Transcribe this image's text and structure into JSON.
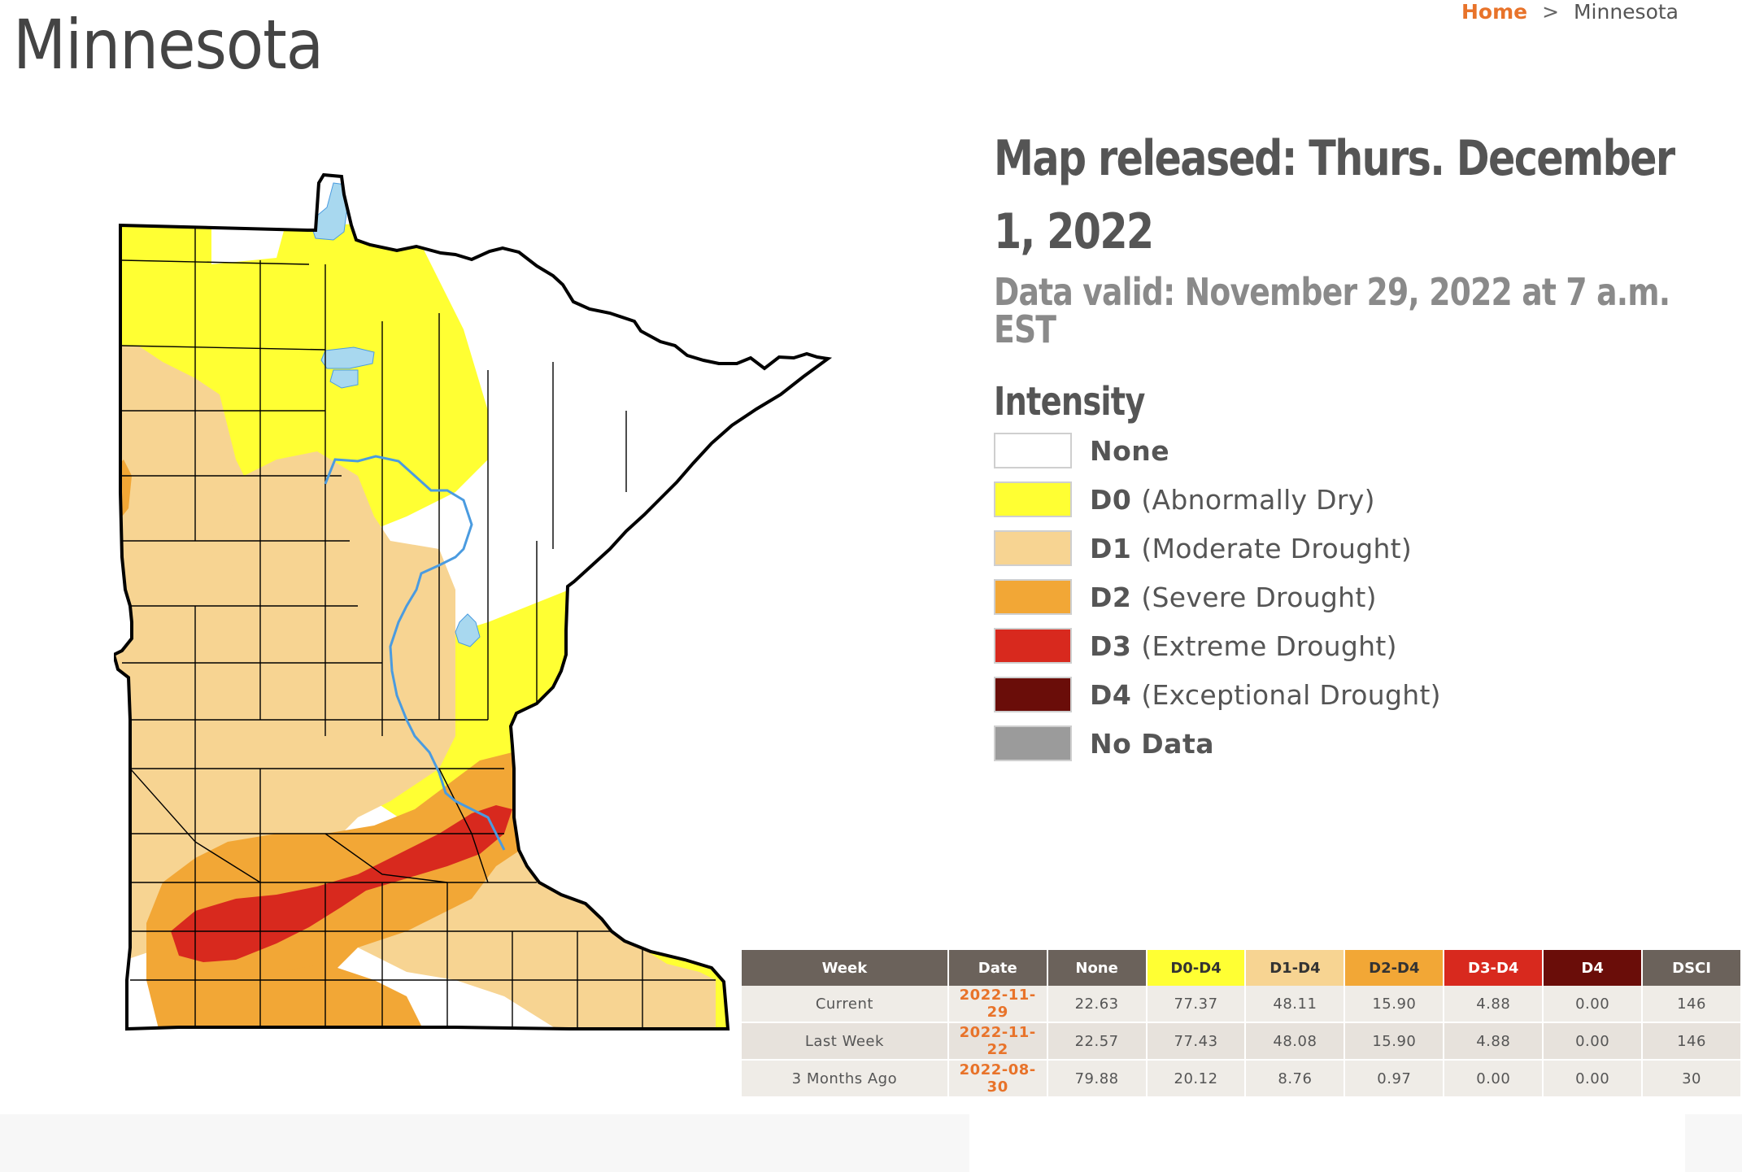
{
  "page": {
    "title": "Minnesota"
  },
  "breadcrumb": {
    "home": "Home",
    "separator": ">",
    "current": "Minnesota"
  },
  "map": {
    "released": "Map released: Thurs. December 1, 2022",
    "valid": "Data valid: November 29, 2022 at 7 a.m. EST"
  },
  "legend": {
    "title": "Intensity",
    "items": [
      {
        "code": "None",
        "desc": "",
        "color": "#ffffff"
      },
      {
        "code": "D0",
        "desc": "(Abnormally Dry)",
        "color": "#ffff33"
      },
      {
        "code": "D1",
        "desc": "(Moderate Drought)",
        "color": "#f7d492"
      },
      {
        "code": "D2",
        "desc": "(Severe Drought)",
        "color": "#f2a736"
      },
      {
        "code": "D3",
        "desc": "(Extreme Drought)",
        "color": "#d8291e"
      },
      {
        "code": "D4",
        "desc": "(Exceptional Drought)",
        "color": "#6a0d09"
      },
      {
        "code": "No Data",
        "desc": "",
        "color": "#9b9b9b"
      }
    ]
  },
  "stats": {
    "headers": [
      "Week",
      "Date",
      "None",
      "D0-D4",
      "D1-D4",
      "D2-D4",
      "D3-D4",
      "D4",
      "DSCI"
    ],
    "rows": [
      {
        "week": "Current",
        "date": "2022-11-29",
        "none": "22.63",
        "d0d4": "77.37",
        "d1d4": "48.11",
        "d2d4": "15.90",
        "d3d4": "4.88",
        "d4": "0.00",
        "dsci": "146"
      },
      {
        "week": "Last Week",
        "date": "2022-11-22",
        "none": "22.57",
        "d0d4": "77.43",
        "d1d4": "48.08",
        "d2d4": "15.90",
        "d3d4": "4.88",
        "d4": "0.00",
        "dsci": "146"
      },
      {
        "week": "3 Months Ago",
        "date": "2022-08-30",
        "none": "79.88",
        "d0d4": "20.12",
        "d1d4": "8.76",
        "d2d4": "0.97",
        "d3d4": "0.00",
        "d4": "0.00",
        "dsci": "30"
      }
    ]
  }
}
